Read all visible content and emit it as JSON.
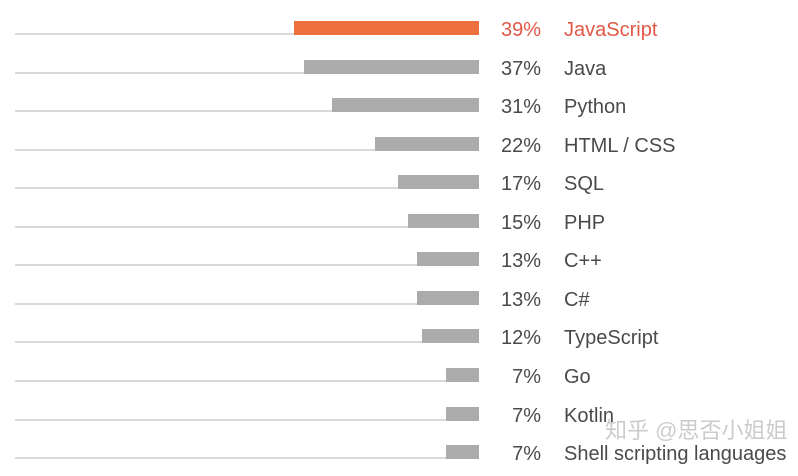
{
  "chart_data": {
    "type": "bar",
    "orientation": "horizontal",
    "title": "",
    "xlabel": "",
    "ylabel": "",
    "unit": "%",
    "xlim": [
      0,
      100
    ],
    "grid": false,
    "legend": false,
    "categories": [
      "JavaScript",
      "Java",
      "Python",
      "HTML / CSS",
      "SQL",
      "PHP",
      "C++",
      "C#",
      "TypeScript",
      "Go",
      "Kotlin",
      "Shell scripting languages"
    ],
    "values": [
      39,
      37,
      31,
      22,
      17,
      15,
      13,
      13,
      12,
      7,
      7,
      7
    ],
    "value_labels": [
      "39%",
      "37%",
      "31%",
      "22%",
      "17%",
      "15%",
      "13%",
      "13%",
      "12%",
      "7%",
      "7%",
      "7%"
    ],
    "highlighted_category": "JavaScript",
    "colors": {
      "highlight_bar": "#ed6f3e",
      "highlight_text": "#e25847",
      "bar": "#ababab",
      "text": "#4a4a4a",
      "track_line": "#d9d9d9"
    }
  },
  "watermark": {
    "text": "知乎 @思否小姐姐",
    "color": "#bfbfbf"
  }
}
